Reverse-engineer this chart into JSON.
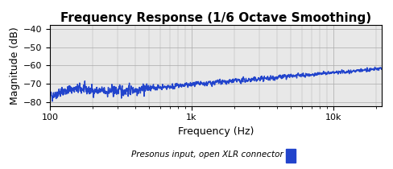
{
  "title": "Frequency Response (1/6 Octave Smoothing)",
  "xlabel": "Frequency (Hz)",
  "ylabel": "Magnitude (dB)",
  "xlim": [
    100,
    22000
  ],
  "ylim": [
    -82,
    -38
  ],
  "yticks": [
    -80,
    -70,
    -60,
    -50,
    -40
  ],
  "xticks": [
    100,
    1000,
    10000
  ],
  "xticklabels": [
    "100",
    "1k",
    "10k"
  ],
  "line_color": "#2244cc",
  "line_width": 1.0,
  "grid_color": "#aaaaaa",
  "bg_color": "#e8e8e8",
  "legend_label": "Presonus input, open XLR connector",
  "legend_color": "#2244cc",
  "title_fontsize": 11,
  "axis_fontsize": 9,
  "tick_fontsize": 8
}
